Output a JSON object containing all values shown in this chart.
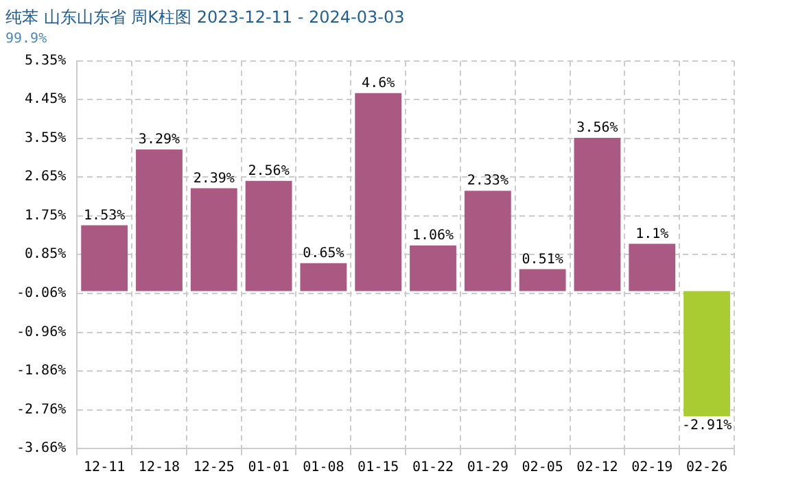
{
  "chart_data": {
    "type": "bar",
    "title": "纯苯 山东山东省 周K柱图 2023-12-11 - 2024-03-03",
    "subtitle": "99.9%",
    "categories": [
      "12-11",
      "12-18",
      "12-25",
      "01-01",
      "01-08",
      "01-15",
      "01-22",
      "01-29",
      "02-05",
      "02-12",
      "02-19",
      "02-26"
    ],
    "values": [
      1.53,
      3.29,
      2.39,
      2.56,
      0.65,
      4.6,
      1.06,
      2.33,
      0.51,
      3.56,
      1.1,
      -2.91
    ],
    "colors": [
      "#aa5a82",
      "#aa5a82",
      "#aa5a82",
      "#aa5a82",
      "#aa5a82",
      "#aa5a82",
      "#aa5a82",
      "#aa5a82",
      "#aa5a82",
      "#aa5a82",
      "#aa5a82",
      "#aacc33"
    ],
    "value_labels": [
      "1.53%",
      "3.29%",
      "2.39%",
      "2.56%",
      "0.65%",
      "4.6%",
      "1.06%",
      "2.33%",
      "0.51%",
      "3.56%",
      "1.1%",
      "-2.91%"
    ],
    "ylim": [
      -3.66,
      5.35
    ],
    "yticks": [
      {
        "value": -3.66,
        "label": "-3.66%"
      },
      {
        "value": -2.76,
        "label": "-2.76%"
      },
      {
        "value": -1.86,
        "label": "-1.86%"
      },
      {
        "value": -0.96,
        "label": "-0.96%"
      },
      {
        "value": -0.06,
        "label": "-0.06%"
      },
      {
        "value": 0.85,
        "label": "0.85%"
      },
      {
        "value": 1.75,
        "label": "1.75%"
      },
      {
        "value": 2.65,
        "label": "2.65%"
      },
      {
        "value": 3.55,
        "label": "3.55%"
      },
      {
        "value": 4.45,
        "label": "4.45%"
      },
      {
        "value": 5.35,
        "label": "5.35%"
      }
    ],
    "grid": true,
    "legend": false
  }
}
